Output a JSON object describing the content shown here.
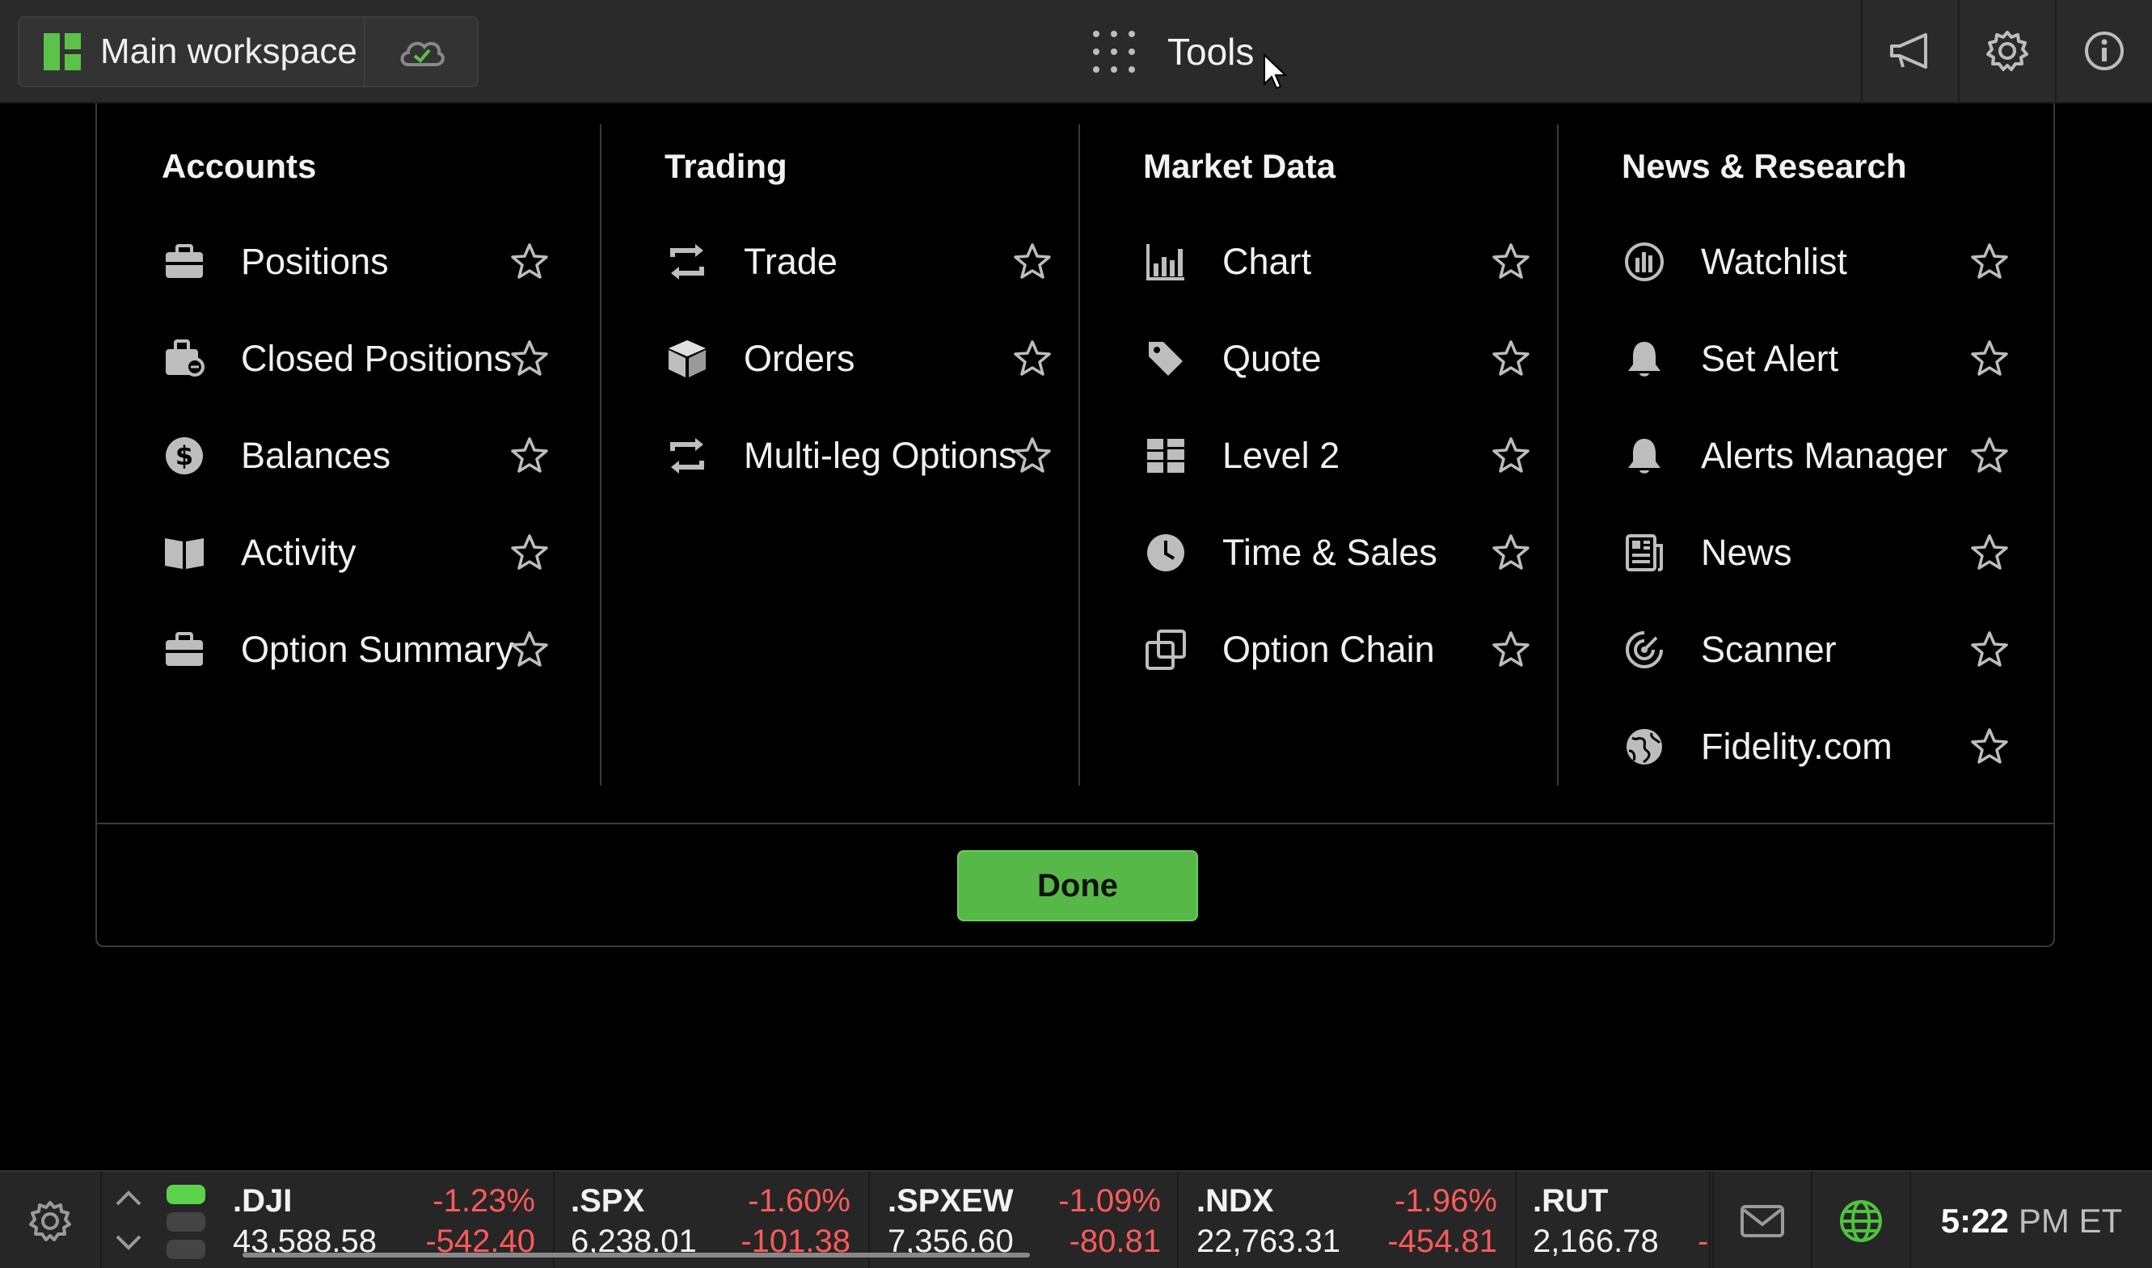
{
  "topbar": {
    "workspace_label": "Main workspace",
    "tools_label": "Tools"
  },
  "panel": {
    "columns": [
      {
        "title": "Accounts",
        "items": [
          {
            "label": "Positions",
            "icon": "briefcase-icon"
          },
          {
            "label": "Closed Positions",
            "icon": "briefcase-closed-icon"
          },
          {
            "label": "Balances",
            "icon": "dollar-icon"
          },
          {
            "label": "Activity",
            "icon": "book-icon"
          },
          {
            "label": "Option Summary",
            "icon": "briefcase-icon"
          }
        ]
      },
      {
        "title": "Trading",
        "items": [
          {
            "label": "Trade",
            "icon": "trade-arrows-icon"
          },
          {
            "label": "Orders",
            "icon": "box-icon"
          },
          {
            "label": "Multi-leg Options",
            "icon": "trade-arrows-icon"
          }
        ]
      },
      {
        "title": "Market Data",
        "items": [
          {
            "label": "Chart",
            "icon": "chart-icon"
          },
          {
            "label": "Quote",
            "icon": "tag-icon"
          },
          {
            "label": "Level 2",
            "icon": "level2-icon"
          },
          {
            "label": "Time & Sales",
            "icon": "clock-icon"
          },
          {
            "label": "Option Chain",
            "icon": "option-chain-icon"
          }
        ]
      },
      {
        "title": "News & Research",
        "items": [
          {
            "label": "Watchlist",
            "icon": "watchlist-icon"
          },
          {
            "label": "Set Alert",
            "icon": "bell-icon"
          },
          {
            "label": "Alerts Manager",
            "icon": "bell-icon"
          },
          {
            "label": "News",
            "icon": "newspaper-icon"
          },
          {
            "label": "Scanner",
            "icon": "scanner-icon"
          },
          {
            "label": "Fidelity.com",
            "icon": "globe-icon"
          }
        ]
      }
    ],
    "done_label": "Done"
  },
  "tickers": [
    {
      "symbol": ".DJI",
      "pct": "-1.23%",
      "price": "43,588.58",
      "change": "-542.40"
    },
    {
      "symbol": ".SPX",
      "pct": "-1.60%",
      "price": "6,238.01",
      "change": "-101.38"
    },
    {
      "symbol": ".SPXEW",
      "pct": "-1.09%",
      "price": "7,356.60",
      "change": "-80.81"
    },
    {
      "symbol": ".NDX",
      "pct": "-1.96%",
      "price": "22,763.31",
      "change": "-454.81"
    },
    {
      "symbol": ".RUT",
      "pct": "",
      "price": "2,166.78",
      "change": "-"
    }
  ],
  "clock": {
    "time": "5:22",
    "suffix": "PM ET"
  },
  "colors": {
    "accent_green": "#56b947",
    "negative": "#ff5a5a",
    "background": "#000000",
    "bar": "#2a2a2a"
  }
}
